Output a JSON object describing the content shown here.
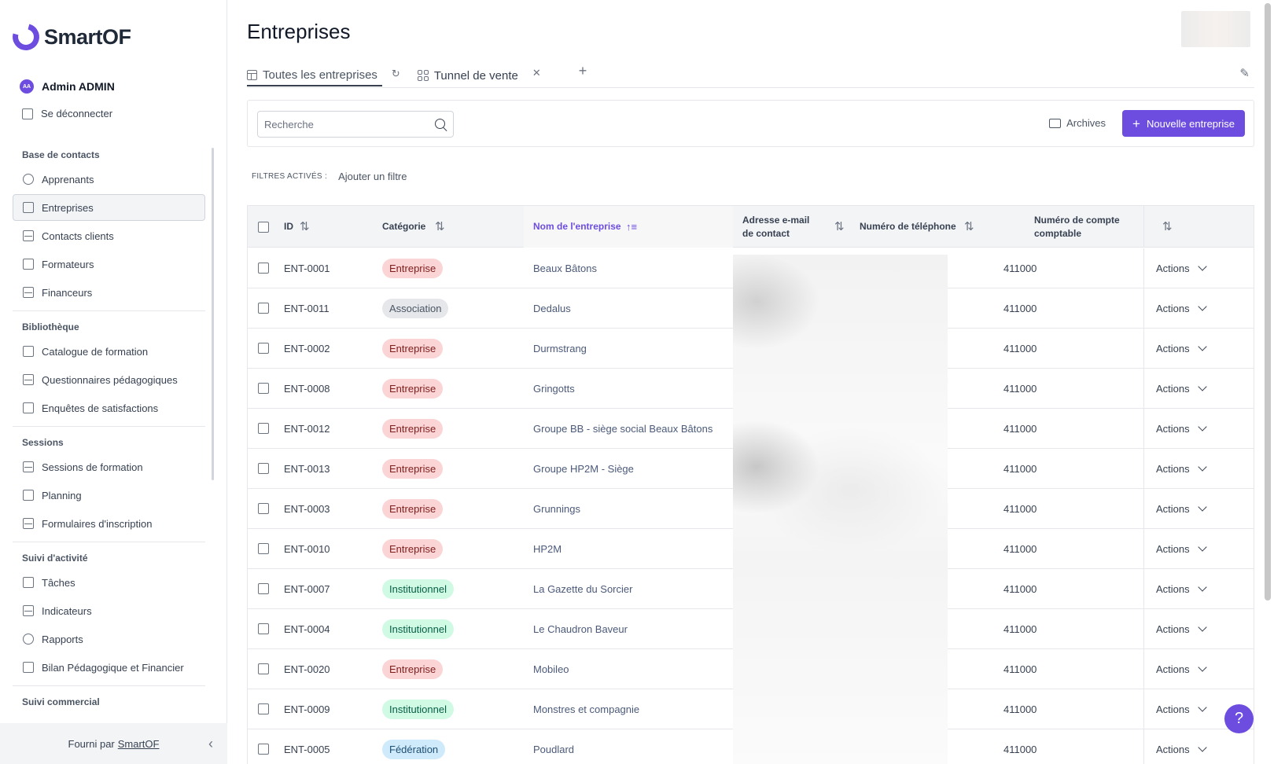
{
  "app": {
    "brand": "SmartOF"
  },
  "user": {
    "initials": "AA",
    "name": "Admin ADMIN",
    "logout_label": "Se déconnecter"
  },
  "sidebar": {
    "sections": [
      {
        "title": "Base de contacts",
        "items": [
          "Apprenants",
          "Entreprises",
          "Contacts clients",
          "Formateurs",
          "Financeurs"
        ]
      },
      {
        "title": "Bibliothèque",
        "items": [
          "Catalogue de formation",
          "Questionnaires pédagogiques",
          "Enquêtes de satisfactions"
        ]
      },
      {
        "title": "Sessions",
        "items": [
          "Sessions de formation",
          "Planning",
          "Formulaires d'inscription"
        ]
      },
      {
        "title": "Suivi d'activité",
        "items": [
          "Tâches",
          "Indicateurs",
          "Rapports",
          "Bilan Pédagogique et Financier"
        ]
      },
      {
        "title": "Suivi commercial",
        "items": []
      }
    ],
    "active_item": "Entreprises",
    "footer_prefix": "Fourni par",
    "footer_link": "SmartOF"
  },
  "page": {
    "title": "Entreprises"
  },
  "tabs": [
    {
      "label": "Toutes les entreprises",
      "active": true
    },
    {
      "label": "Tunnel de vente",
      "active": false
    }
  ],
  "toolbar": {
    "search_placeholder": "Recherche",
    "archives_label": "Archives",
    "new_button_label": "Nouvelle entreprise"
  },
  "filters": {
    "label": "FILTRES ACTIVÉS :",
    "add_label": "Ajouter un filtre"
  },
  "table": {
    "columns": {
      "id": "ID",
      "category": "Catégorie",
      "name": "Nom de l'entreprise",
      "email": "Adresse e-mail de contact",
      "phone": "Numéro de téléphone",
      "account": "Numéro de compte comptable"
    },
    "action_label": "Actions",
    "rows": [
      {
        "id": "ENT-0001",
        "category": "Entreprise",
        "name": "Beaux Bâtons",
        "account": "411000"
      },
      {
        "id": "ENT-0011",
        "category": "Association",
        "name": "Dedalus",
        "account": "411000"
      },
      {
        "id": "ENT-0002",
        "category": "Entreprise",
        "name": "Durmstrang",
        "account": "411000"
      },
      {
        "id": "ENT-0008",
        "category": "Entreprise",
        "name": "Gringotts",
        "account": "411000"
      },
      {
        "id": "ENT-0012",
        "category": "Entreprise",
        "name": "Groupe BB - siège social Beaux Bâtons",
        "account": "411000"
      },
      {
        "id": "ENT-0013",
        "category": "Entreprise",
        "name": "Groupe HP2M - Siège",
        "account": "411000"
      },
      {
        "id": "ENT-0003",
        "category": "Entreprise",
        "name": "Grunnings",
        "account": "411000"
      },
      {
        "id": "ENT-0010",
        "category": "Entreprise",
        "name": "HP2M",
        "account": "411000"
      },
      {
        "id": "ENT-0007",
        "category": "Institutionnel",
        "name": "La Gazette du Sorcier",
        "account": "411000"
      },
      {
        "id": "ENT-0004",
        "category": "Institutionnel",
        "name": "Le Chaudron Baveur",
        "account": "411000"
      },
      {
        "id": "ENT-0020",
        "category": "Entreprise",
        "name": "Mobileo",
        "account": "411000"
      },
      {
        "id": "ENT-0009",
        "category": "Institutionnel",
        "name": "Monstres et compagnie",
        "account": "411000"
      },
      {
        "id": "ENT-0005",
        "category": "Fédération",
        "name": "Poudlard",
        "account": "411000"
      }
    ]
  },
  "category_colors": {
    "Entreprise": {
      "bg": "#fbd5d5",
      "fg": "#7f1d1d"
    },
    "Association": {
      "bg": "#e5e7eb",
      "fg": "#4b5563"
    },
    "Institutionnel": {
      "bg": "#d1fae5",
      "fg": "#065f46"
    },
    "Fédération": {
      "bg": "#cfeafb",
      "fg": "#1e4f73"
    }
  },
  "help": {
    "label": "?"
  }
}
